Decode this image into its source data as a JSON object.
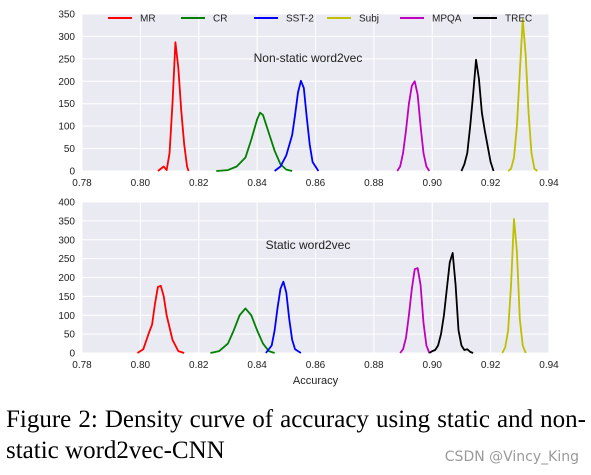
{
  "chart_data": {
    "type": "line",
    "xlabel": "Accuracy",
    "xticks": [
      "0.78",
      "0.80",
      "0.82",
      "0.84",
      "0.86",
      "0.88",
      "0.90",
      "0.92",
      "0.94"
    ],
    "xlim": [
      0.78,
      0.94
    ],
    "legend": {
      "placement": "top",
      "entries": [
        {
          "label": "MR",
          "color": "#ff0000"
        },
        {
          "label": "CR",
          "color": "#008000"
        },
        {
          "label": "SST-2",
          "color": "#0000ff"
        },
        {
          "label": "Subj",
          "color": "#bfbf00"
        },
        {
          "label": "MPQA",
          "color": "#bf00bf"
        },
        {
          "label": "TREC",
          "color": "#000000"
        }
      ]
    },
    "grid": true,
    "panels": [
      {
        "title": "Non-static word2vec",
        "ylim": [
          0,
          350
        ],
        "yticks": [
          "0",
          "50",
          "100",
          "150",
          "200",
          "250",
          "300",
          "350"
        ],
        "series": [
          {
            "name": "MR",
            "color": "#ff0000",
            "points": [
              [
                0.806,
                0
              ],
              [
                0.807,
                5
              ],
              [
                0.808,
                10
              ],
              [
                0.809,
                2
              ],
              [
                0.81,
                40
              ],
              [
                0.811,
                150
              ],
              [
                0.812,
                287
              ],
              [
                0.813,
                230
              ],
              [
                0.814,
                135
              ],
              [
                0.815,
                60
              ],
              [
                0.816,
                10
              ],
              [
                0.8165,
                0
              ]
            ]
          },
          {
            "name": "CR",
            "color": "#008000",
            "points": [
              [
                0.826,
                0
              ],
              [
                0.83,
                2
              ],
              [
                0.833,
                10
              ],
              [
                0.836,
                30
              ],
              [
                0.838,
                70
              ],
              [
                0.84,
                115
              ],
              [
                0.841,
                130
              ],
              [
                0.842,
                125
              ],
              [
                0.844,
                85
              ],
              [
                0.846,
                45
              ],
              [
                0.848,
                15
              ],
              [
                0.85,
                3
              ],
              [
                0.852,
                0
              ]
            ]
          },
          {
            "name": "SST-2",
            "color": "#0000ff",
            "points": [
              [
                0.846,
                0
              ],
              [
                0.848,
                10
              ],
              [
                0.85,
                35
              ],
              [
                0.852,
                80
              ],
              [
                0.853,
                125
              ],
              [
                0.854,
                175
              ],
              [
                0.855,
                201
              ],
              [
                0.856,
                185
              ],
              [
                0.857,
                120
              ],
              [
                0.858,
                60
              ],
              [
                0.859,
                20
              ],
              [
                0.861,
                0
              ]
            ]
          },
          {
            "name": "Subj",
            "color": "#bfbf00",
            "points": [
              [
                0.926,
                0
              ],
              [
                0.927,
                5
              ],
              [
                0.928,
                30
              ],
              [
                0.929,
                100
              ],
              [
                0.93,
                220
              ],
              [
                0.931,
                338
              ],
              [
                0.932,
                260
              ],
              [
                0.933,
                130
              ],
              [
                0.934,
                40
              ],
              [
                0.935,
                5
              ],
              [
                0.936,
                0
              ]
            ]
          },
          {
            "name": "MPQA",
            "color": "#bf00bf",
            "points": [
              [
                0.888,
                0
              ],
              [
                0.889,
                10
              ],
              [
                0.89,
                40
              ],
              [
                0.891,
                90
              ],
              [
                0.892,
                150
              ],
              [
                0.893,
                190
              ],
              [
                0.894,
                200
              ],
              [
                0.895,
                170
              ],
              [
                0.896,
                100
              ],
              [
                0.897,
                40
              ],
              [
                0.898,
                10
              ],
              [
                0.899,
                0
              ]
            ]
          },
          {
            "name": "TREC",
            "color": "#000000",
            "points": [
              [
                0.91,
                0
              ],
              [
                0.911,
                15
              ],
              [
                0.912,
                40
              ],
              [
                0.913,
                100
              ],
              [
                0.914,
                170
              ],
              [
                0.915,
                248
              ],
              [
                0.916,
                205
              ],
              [
                0.917,
                130
              ],
              [
                0.918,
                90
              ],
              [
                0.919,
                55
              ],
              [
                0.92,
                20
              ],
              [
                0.921,
                0
              ]
            ]
          }
        ]
      },
      {
        "title": "Static word2vec",
        "ylim": [
          0,
          400
        ],
        "yticks": [
          "0",
          "50",
          "100",
          "150",
          "200",
          "250",
          "300",
          "350",
          "400"
        ],
        "series": [
          {
            "name": "MR",
            "color": "#ff0000",
            "points": [
              [
                0.799,
                0
              ],
              [
                0.801,
                10
              ],
              [
                0.803,
                55
              ],
              [
                0.804,
                75
              ],
              [
                0.805,
                130
              ],
              [
                0.806,
                175
              ],
              [
                0.807,
                178
              ],
              [
                0.808,
                150
              ],
              [
                0.809,
                100
              ],
              [
                0.811,
                35
              ],
              [
                0.813,
                5
              ],
              [
                0.815,
                0
              ]
            ]
          },
          {
            "name": "CR",
            "color": "#008000",
            "points": [
              [
                0.824,
                0
              ],
              [
                0.827,
                5
              ],
              [
                0.83,
                25
              ],
              [
                0.832,
                60
              ],
              [
                0.834,
                100
              ],
              [
                0.836,
                118
              ],
              [
                0.838,
                100
              ],
              [
                0.84,
                60
              ],
              [
                0.842,
                25
              ],
              [
                0.844,
                5
              ],
              [
                0.846,
                0
              ]
            ]
          },
          {
            "name": "SST-2",
            "color": "#0000ff",
            "points": [
              [
                0.843,
                0
              ],
              [
                0.845,
                20
              ],
              [
                0.846,
                60
              ],
              [
                0.847,
                120
              ],
              [
                0.848,
                170
              ],
              [
                0.849,
                189
              ],
              [
                0.85,
                160
              ],
              [
                0.851,
                90
              ],
              [
                0.852,
                35
              ],
              [
                0.853,
                10
              ],
              [
                0.855,
                0
              ]
            ]
          },
          {
            "name": "Subj",
            "color": "#bfbf00",
            "points": [
              [
                0.924,
                0
              ],
              [
                0.925,
                15
              ],
              [
                0.926,
                60
              ],
              [
                0.927,
                180
              ],
              [
                0.928,
                355
              ],
              [
                0.929,
                270
              ],
              [
                0.93,
                90
              ],
              [
                0.931,
                20
              ],
              [
                0.932,
                0
              ]
            ]
          },
          {
            "name": "MPQA",
            "color": "#bf00bf",
            "points": [
              [
                0.889,
                0
              ],
              [
                0.89,
                10
              ],
              [
                0.891,
                40
              ],
              [
                0.892,
                100
              ],
              [
                0.893,
                170
              ],
              [
                0.894,
                222
              ],
              [
                0.895,
                225
              ],
              [
                0.896,
                180
              ],
              [
                0.897,
                80
              ],
              [
                0.898,
                20
              ],
              [
                0.899,
                0
              ]
            ]
          },
          {
            "name": "TREC",
            "color": "#000000",
            "points": [
              [
                0.899,
                0
              ],
              [
                0.9,
                5
              ],
              [
                0.901,
                8
              ],
              [
                0.902,
                20
              ],
              [
                0.903,
                50
              ],
              [
                0.904,
                100
              ],
              [
                0.905,
                170
              ],
              [
                0.906,
                240
              ],
              [
                0.907,
                265
              ],
              [
                0.908,
                180
              ],
              [
                0.909,
                60
              ],
              [
                0.91,
                20
              ],
              [
                0.911,
                8
              ],
              [
                0.912,
                10
              ],
              [
                0.913,
                3
              ],
              [
                0.914,
                0
              ]
            ]
          }
        ]
      }
    ]
  },
  "caption": "Figure 2: Density curve of accuracy using static and non-static word2vec-CNN",
  "watermark": "CSDN @Vincy_King"
}
